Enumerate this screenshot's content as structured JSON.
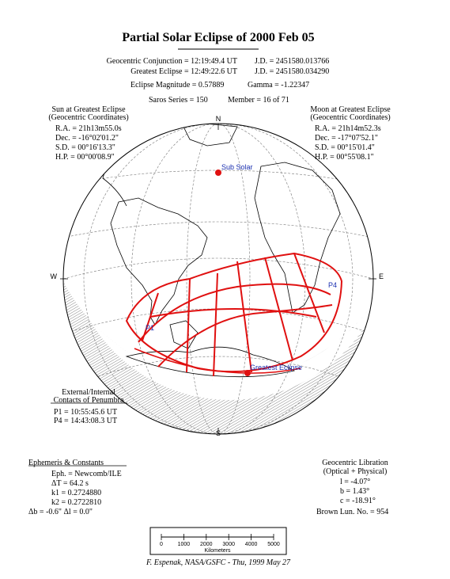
{
  "title": "Partial Solar Eclipse of 2000 Feb 05",
  "header": {
    "conjunction": "Geocentric Conjunction =  12:19:49.4 UT",
    "conjunction_jd": "J.D. =  2451580.013766",
    "greatest": "Greatest Eclipse =  12:49:22.6 UT",
    "greatest_jd": "J.D. =  2451580.034290",
    "magnitude": "Eclipse Magnitude =  0.57889",
    "gamma": "Gamma = -1.22347",
    "saros": "Saros Series = 150",
    "member": "Member = 16 of 71"
  },
  "sun": {
    "title": "Sun at Greatest Eclipse",
    "subtitle": "(Geocentric Coordinates)",
    "rows": [
      "R.A. = 21h13m55.0s",
      "Dec. = -16°02'01.2\"",
      "S.D. =  00°16'13.3\"",
      "H.P. =  00°00'08.9\""
    ]
  },
  "moon": {
    "title": "Moon at Greatest Eclipse",
    "subtitle": "(Geocentric Coordinates)",
    "rows": [
      "R.A. = 21h14m52.3s",
      "Dec. = -17°07'52.1\"",
      "S.D. =  00°15'01.4\"",
      "H.P. =  00°55'08.1\""
    ]
  },
  "globe": {
    "north": "N",
    "south": "S",
    "west": "W",
    "east": "E",
    "sub_solar": "Sub Solar",
    "greatest_eclipse": "Greatest Eclipse",
    "p1": "P1",
    "p4": "P4"
  },
  "contacts": {
    "title": "External/Internal",
    "subtitle": "Contacts of Penumbra",
    "rows": [
      "P1 = 10:55:45.6 UT",
      "P4 = 14:43:08.3 UT"
    ]
  },
  "ephemeris": {
    "title": "Ephemeris & Constants",
    "rows": [
      "Eph. = Newcomb/ILE",
      "ΔT =      64.2  s",
      "k1 = 0.2724880",
      "k2 = 0.2722810",
      "Δb =  -0.6\"    Δl =   0.0\""
    ]
  },
  "libration": {
    "title": "Geocentric Libration",
    "subtitle": "(Optical + Physical)",
    "rows": [
      "l =   -4.07°",
      "b =    1.43°",
      "c = -18.91°"
    ],
    "brown": "Brown Lun. No. =  954"
  },
  "scale": {
    "ticks": [
      "0",
      "1000",
      "2000",
      "3000",
      "4000",
      "5000"
    ],
    "unit": "Kilometers"
  },
  "footer": "F. Espenak, NASA/GSFC - Thu, 1999 May 27"
}
